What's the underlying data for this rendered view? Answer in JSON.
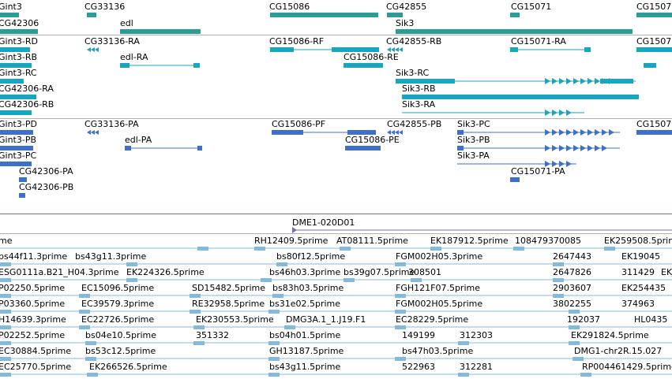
{
  "colors": {
    "gene": "#2b9d95",
    "tx_cyan": "#1aa5be",
    "tx_blue": "#3c6fce",
    "est": "#82b9de",
    "separator": "#a0a0a0",
    "clone_line": "#7f66b3"
  },
  "gene_track": {
    "labels": [
      "Gint3",
      "CG33136",
      "CG15086",
      "CG42855",
      "CG15071",
      "CG1507",
      "CG42306",
      "edl",
      "Sik3"
    ]
  },
  "tx_track_1": {
    "labels": [
      "CG33136-RA",
      "CG15086-RF",
      "CG42855-RB",
      "CG15071-RA",
      "Gint3-RD",
      "CG15086-RE",
      "Gint3-RB",
      "edl-RA",
      "Gint3-RC",
      "Sik3-RC",
      "CG42306-RA",
      "Sik3-RB",
      "CG42306-RB",
      "Sik3-RA",
      "CG1507"
    ]
  },
  "tx_track_2": {
    "labels": [
      "Gint3-PD",
      "CG33136-PA",
      "CG15086-PF",
      "CG42855-PB",
      "Sik3-PC",
      "CG1507",
      "Gint3-PB",
      "edl-PA",
      "CG15086-PE",
      "Sik3-PB",
      "Gint3-PC",
      "Sik3-PA",
      "CG42306-PA",
      "CG15071-PA",
      "CG42306-PB"
    ]
  },
  "clone_track": {
    "label": "DME1-020D01"
  },
  "est_track": {
    "labels": [
      "me",
      "RH12409.5prime",
      "AT08111.5prime",
      "EK187912.5prime",
      "108479370085",
      "EK259508.5prime",
      "bs44f11.3prime",
      "bs43g11.3prime",
      "bs80f12.5prime",
      "FGM002H05.3prime",
      "2647443",
      "EK19045",
      "ESG0111a.B21_H04.3prime",
      "EK224326.5prime",
      "bs46h03.3prime",
      "bs39g07.5prime",
      "308501",
      "2647826",
      "311429",
      "EK",
      "P02250.5prime",
      "EC15096.5prime",
      "SD15482.5prime",
      "bs83h03.5prime",
      "FGH121F07.5prime",
      "2903607",
      "EK254435",
      "P03360.5prime",
      "EC39579.3prime",
      "RE32958.5prime",
      "bs31e02.5prime",
      "FGM002H05.5prime",
      "3802255",
      "374963",
      "H14639.3prime",
      "EC22726.5prime",
      "EK230553.5prime",
      "DMG3A.1_1.J19.F1",
      "EC28229.5prime",
      "192037",
      "HL0435",
      "P02252.5prime",
      "bs04e10.5prime",
      "351332",
      "bs04h01.5prime",
      "149199",
      "312303",
      "EK291824.5prime",
      "EC30884.5prime",
      "bs53c12.5prime",
      "GH13187.5prime",
      "bs47h03.5prime",
      "DMG1-chr2R.15.027",
      "EC25770.5prime",
      "EK266526.5prime",
      "bs43g11.5prime",
      "522963",
      "312281",
      "RP004461429.5prime"
    ]
  }
}
